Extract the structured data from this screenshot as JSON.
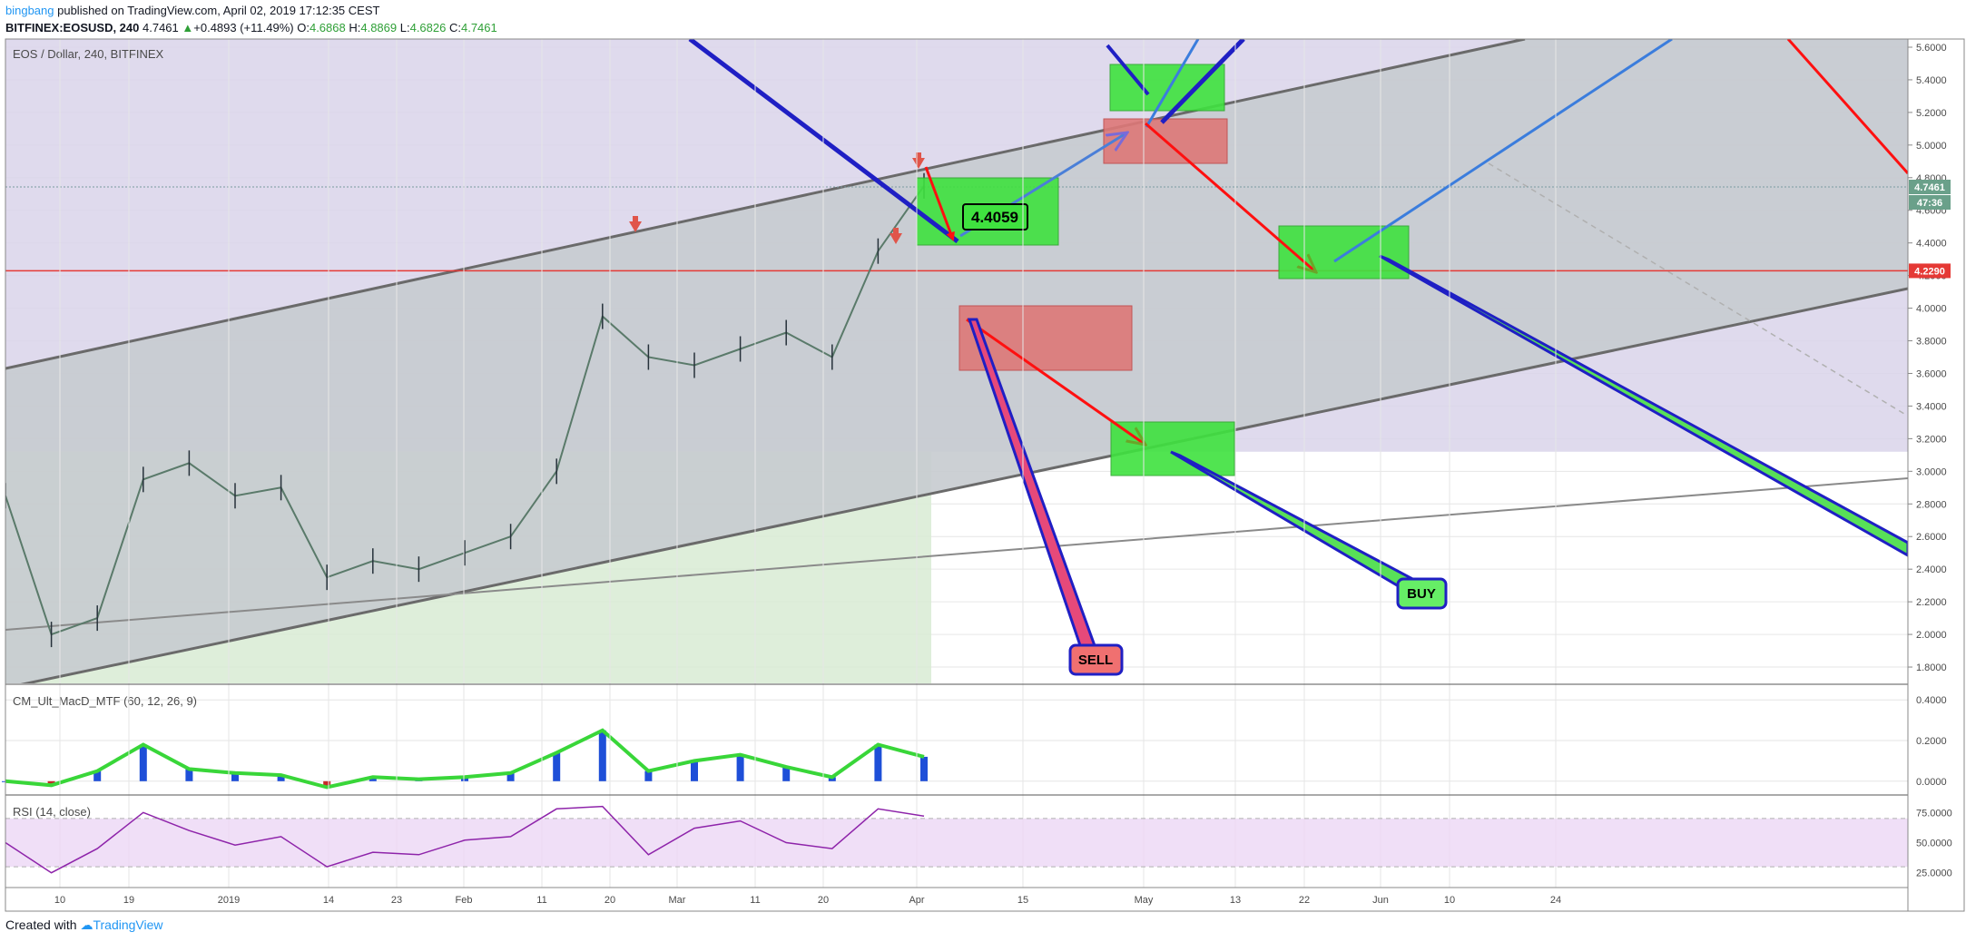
{
  "header": {
    "user": "bingbang",
    "published_text": " published on TradingView.com, April 02, 2019 17:12:35 CEST",
    "symbol": "BITFINEX:EOSUSD, 240",
    "last": "4.7461",
    "change": "+0.4893 (+11.49%)",
    "open_label": "O:",
    "open": "4.6868",
    "high_label": "H:",
    "high": "4.8869",
    "low_label": "L:",
    "low": "4.6826",
    "close_label": "C:",
    "close": "4.7461"
  },
  "footer": {
    "created_with": "Created with",
    "brand": "TradingView"
  },
  "chart_data": {
    "type": "line",
    "title": "EOS / Dollar, 240, BITFINEX",
    "x_ticks": [
      "10",
      "19",
      "2019",
      "14",
      "23",
      "Feb",
      "11",
      "20",
      "Mar",
      "11",
      "20",
      "Apr",
      "15",
      "May",
      "13",
      "22",
      "Jun",
      "10",
      "24"
    ],
    "ylim": [
      1.7,
      5.65
    ],
    "y_ticks": [
      1.8,
      2.0,
      2.2,
      2.4,
      2.6,
      2.8,
      3.0,
      3.2,
      3.4,
      3.6,
      3.8,
      4.0,
      4.2,
      4.4,
      4.6,
      4.8,
      5.0,
      5.2,
      5.4,
      5.6
    ],
    "y_tick_labels": [
      "1.8000",
      "2.0000",
      "2.2000",
      "2.4000",
      "2.6000",
      "2.8000",
      "3.0000",
      "3.2000",
      "3.4000",
      "3.6000",
      "3.8000",
      "4.0000",
      "4.2000",
      "4.4000",
      "4.6000",
      "4.8000",
      "5.0000",
      "5.2000",
      "5.4000",
      "5.6000"
    ],
    "price_series": {
      "x": [
        0,
        6,
        12,
        18,
        24,
        30,
        36,
        42,
        48,
        54,
        60,
        66,
        72,
        78,
        84,
        90,
        96,
        102,
        108,
        114,
        120
      ],
      "y": [
        2.85,
        2.0,
        2.1,
        2.95,
        3.05,
        2.85,
        2.9,
        2.35,
        2.45,
        2.4,
        2.5,
        2.6,
        3.0,
        3.95,
        3.7,
        3.65,
        3.75,
        3.85,
        3.7,
        4.35,
        4.75
      ]
    },
    "last_price_label": "4.7461",
    "countdown_label": "47:36",
    "horizontal_level": 4.229,
    "horizontal_level_label": "4.2290",
    "annotations": {
      "value_box": "4.4059",
      "sell_label": "SELL",
      "buy_label": "BUY"
    },
    "macd": {
      "name": "CM_Ult_MacD_MTF (60, 12, 26, 9)",
      "ylim": [
        -0.05,
        0.45
      ],
      "y_ticks": [
        0.0,
        0.2,
        0.4
      ],
      "y_tick_labels": [
        "0.0000",
        "0.2000",
        "0.4000"
      ],
      "x": [
        0,
        6,
        12,
        18,
        24,
        30,
        36,
        42,
        48,
        54,
        60,
        66,
        72,
        78,
        84,
        90,
        96,
        102,
        108,
        114,
        120
      ],
      "values": [
        0.0,
        -0.02,
        0.05,
        0.18,
        0.06,
        0.04,
        0.03,
        -0.03,
        0.02,
        0.01,
        0.02,
        0.04,
        0.14,
        0.25,
        0.05,
        0.1,
        0.13,
        0.07,
        0.02,
        0.18,
        0.12
      ]
    },
    "rsi": {
      "name": "RSI (14, close)",
      "ylim": [
        15,
        85
      ],
      "band": [
        30,
        70
      ],
      "y_ticks": [
        25,
        50,
        75
      ],
      "y_tick_labels": [
        "25.0000",
        "50.0000",
        "75.0000"
      ],
      "x": [
        0,
        6,
        12,
        18,
        24,
        30,
        36,
        42,
        48,
        54,
        60,
        66,
        72,
        78,
        84,
        90,
        96,
        102,
        108,
        114,
        120
      ],
      "values": [
        50,
        25,
        45,
        75,
        60,
        48,
        55,
        30,
        42,
        40,
        52,
        55,
        78,
        80,
        40,
        62,
        68,
        50,
        45,
        78,
        72
      ]
    },
    "colors": {
      "buy_zone": "#3fe23f",
      "sell_zone": "#de7878",
      "channel_fill": "#c9ced1",
      "purple_zone": "#d9d3ea",
      "green_zone": "#d8ebd3",
      "level_line": "#e53935",
      "blue_arrow": "#1f1fc4",
      "red_arrow": "#ff1010",
      "light_blue_arrow": "#3b7ddd"
    }
  }
}
